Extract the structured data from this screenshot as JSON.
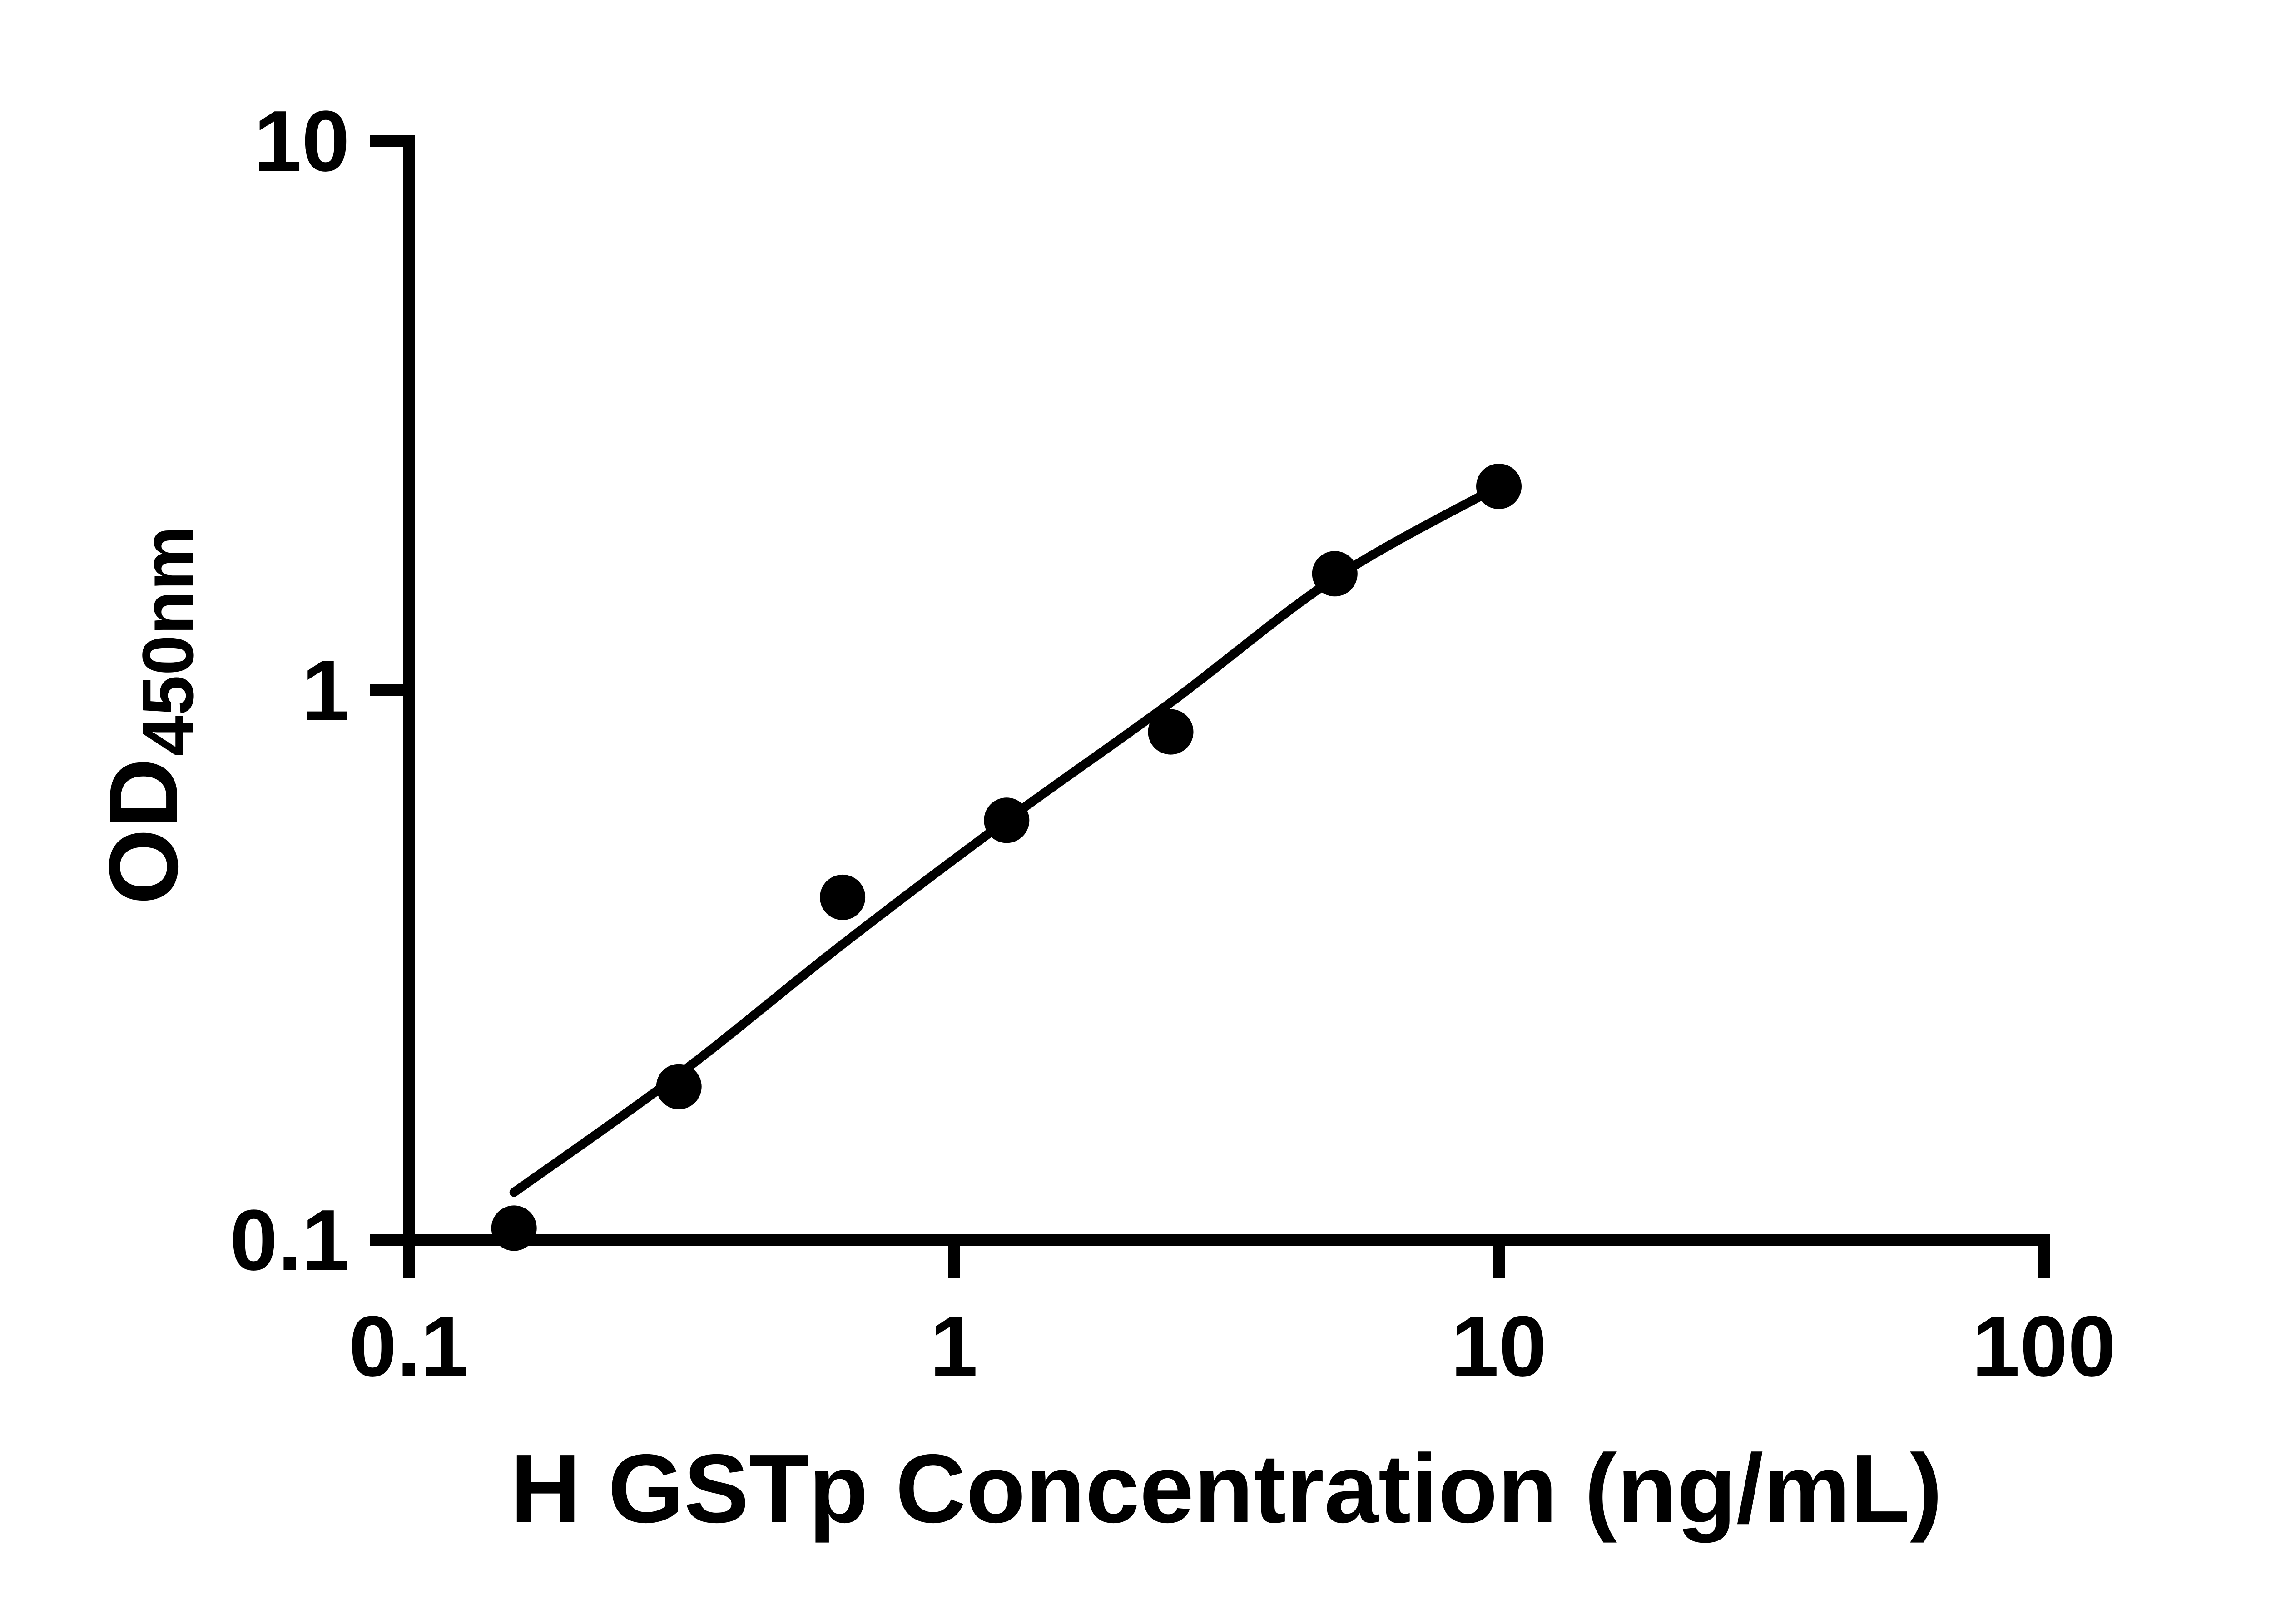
{
  "page": {
    "background_color": "#ffffff",
    "ink_color": "#000000"
  },
  "chart_data": {
    "type": "scatter",
    "title": "",
    "xlabel": "H GSTp Concentration (ng/mL)",
    "ylabel": {
      "main": "OD",
      "subscript": "450nm"
    },
    "x_scale": "log",
    "y_scale": "log",
    "xlim": [
      0.1,
      100
    ],
    "ylim": [
      0.1,
      10
    ],
    "x_ticks": [
      0.1,
      1,
      10,
      100
    ],
    "x_tick_labels": [
      "0.1",
      "1",
      "10",
      "100"
    ],
    "y_ticks": [
      0.1,
      1,
      10
    ],
    "y_tick_labels": [
      "0.1",
      "1",
      "10"
    ],
    "grid": false,
    "legend": "none",
    "marker": "filled-circle",
    "marker_color": "#000000",
    "line_color": "#000000",
    "series": [
      {
        "name": "standard-points",
        "role": "scatter",
        "points": [
          {
            "x": 0.156,
            "y": 0.105
          },
          {
            "x": 0.313,
            "y": 0.19
          },
          {
            "x": 0.625,
            "y": 0.42
          },
          {
            "x": 1.25,
            "y": 0.58
          },
          {
            "x": 2.5,
            "y": 0.84
          },
          {
            "x": 5,
            "y": 1.63
          },
          {
            "x": 10,
            "y": 2.35
          }
        ]
      },
      {
        "name": "fitted-curve",
        "role": "line",
        "points": [
          {
            "x": 0.156,
            "y": 0.122
          },
          {
            "x": 0.313,
            "y": 0.2
          },
          {
            "x": 0.625,
            "y": 0.345
          },
          {
            "x": 1.25,
            "y": 0.58
          },
          {
            "x": 2.5,
            "y": 0.95
          },
          {
            "x": 5,
            "y": 1.6
          },
          {
            "x": 10,
            "y": 2.35
          }
        ]
      }
    ]
  }
}
